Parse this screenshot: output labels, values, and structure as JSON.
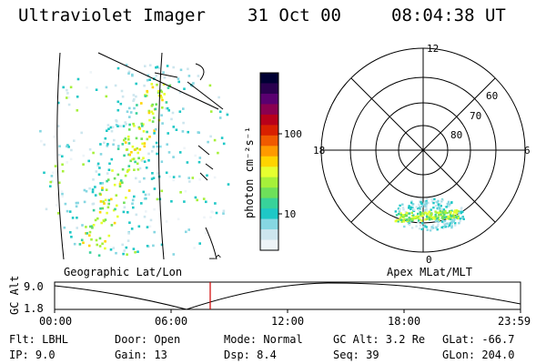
{
  "header": {
    "title": "Ultraviolet Imager",
    "date": "31 Oct 00",
    "time": "08:04:38 UT"
  },
  "colorbar": {
    "unit_label": "photon cm⁻²s⁻¹",
    "tick_labels": [
      "100",
      "10"
    ],
    "colors": [
      "#000033",
      "#2a004f",
      "#5a0070",
      "#8a0050",
      "#b8001a",
      "#d82000",
      "#f05a00",
      "#ff9a00",
      "#ffd400",
      "#e6ff30",
      "#a6f03a",
      "#6ee05a",
      "#38d29a",
      "#1ec8c6",
      "#86d7e2",
      "#cde6ee",
      "#eef4f8"
    ]
  },
  "geo_panel": {
    "label": "Geographic Lat/Lon",
    "footer_glyph": "─^"
  },
  "polar_panel": {
    "label": "Apex  MLat/MLT",
    "mlt_labels": [
      "12",
      "18",
      "6",
      "0"
    ],
    "lat_labels": [
      "60",
      "70",
      "80"
    ]
  },
  "timeline": {
    "axis_label": "GC Alt",
    "y_labels": [
      "9.0",
      "1.8"
    ],
    "x_ticks": [
      "00:00",
      "06:00",
      "12:00",
      "18:00",
      "23:59"
    ],
    "marker_color": "#d00000"
  },
  "info": {
    "col1": [
      "Flt: LBHL",
      "IP:  9.0"
    ],
    "col2": [
      "Door: Open",
      "Gain: 13"
    ],
    "col3": [
      "Mode: Normal",
      "Dsp:    8.4"
    ],
    "col4": [
      "GC Alt: 3.2 Re",
      "Seq: 39"
    ],
    "col5": [
      "GLat: -66.7",
      "GLon: 204.0"
    ]
  }
}
